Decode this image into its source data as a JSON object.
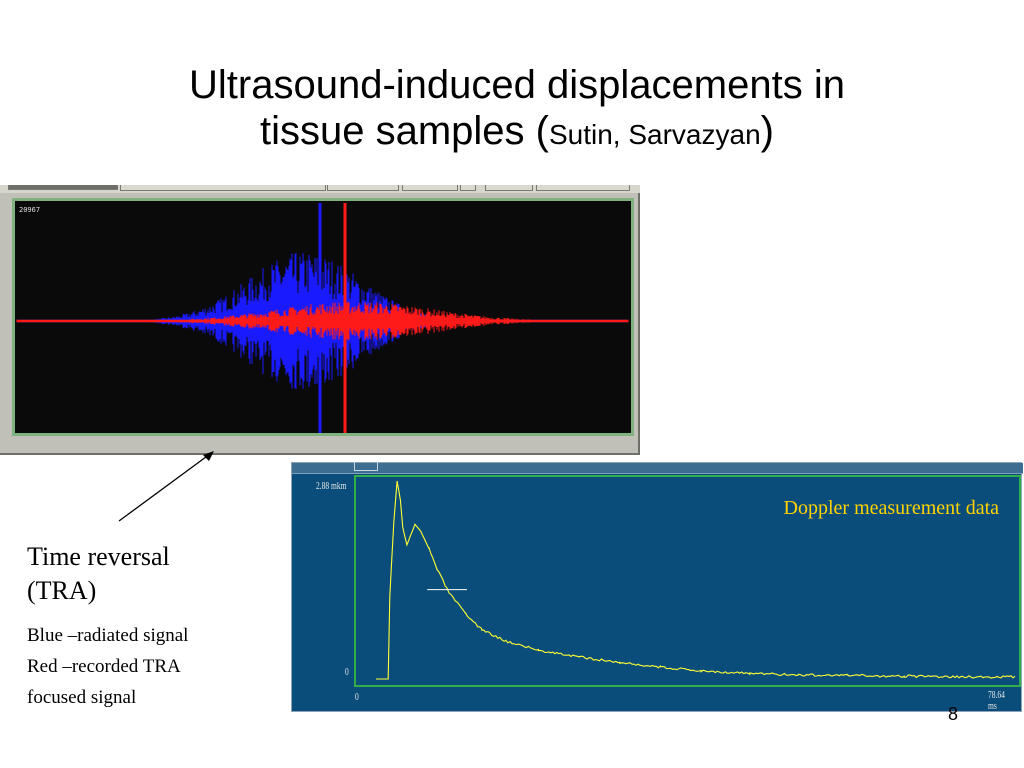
{
  "slide": {
    "title_line1": "Ultrasound-induced displacements in",
    "title_line2_main": "tissue samples (",
    "title_line2_small": "Sutin, Sarvazyan",
    "title_line2_end": ")",
    "page_number": "8"
  },
  "tra_panel": {
    "counter": "20967",
    "series": [
      {
        "name": "Blue –radiated signal",
        "color": "#1a1aff"
      },
      {
        "name": "Red –recorded TRA focused signal",
        "color": "#ff1a1a"
      }
    ],
    "background": "#0a0a0a"
  },
  "doppler_panel": {
    "caption": "Doppler measurement data",
    "y_max_label": "2.88 mkm",
    "y_min_label": "0",
    "x_min_label": "0",
    "x_max_label": "78.64 ms",
    "background": "#0b4d7a",
    "trace_color": "#ffff33",
    "frame_color": "#2fae4a"
  },
  "chart_data": {
    "type": "line",
    "title": "Doppler measurement data",
    "xlabel": "",
    "ylabel": "",
    "xlim": [
      0,
      78.64
    ],
    "ylim": [
      0,
      2.88
    ],
    "x_unit": "ms",
    "y_unit": "mkm",
    "series": [
      {
        "x": [
          0,
          1.5,
          1.7,
          2.2,
          2.6,
          3.0,
          3.3,
          3.8,
          4.3,
          4.8,
          5.5,
          6.5,
          7.5,
          9,
          11,
          13,
          16,
          20,
          25,
          30,
          35,
          40,
          46,
          52,
          58,
          65,
          72,
          78.64
        ],
        "y": [
          0,
          0,
          1.2,
          2.3,
          2.88,
          2.6,
          2.2,
          1.95,
          2.1,
          2.25,
          2.15,
          1.9,
          1.6,
          1.25,
          0.95,
          0.72,
          0.55,
          0.42,
          0.32,
          0.24,
          0.17,
          0.12,
          0.08,
          0.06,
          0.05,
          0.04,
          0.03,
          0.03
        ]
      }
    ]
  },
  "legend_text": {
    "tra_title_line1": "Time reversal",
    "tra_title_line2": "(TRA)",
    "blue_desc": "Blue –radiated signal",
    "red_desc_line1": "Red –recorded TRA",
    "red_desc_line2": "focused signal"
  }
}
